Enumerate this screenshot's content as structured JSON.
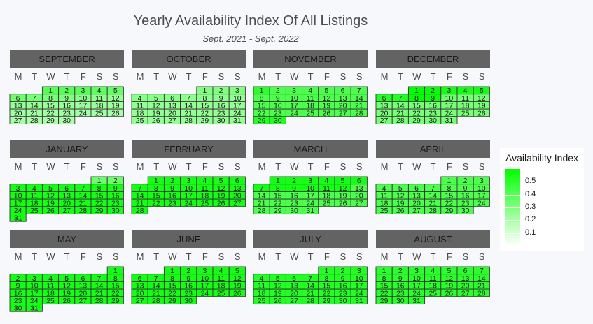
{
  "title": "Yearly Availability Index Of All Listings",
  "subtitle": "Sept. 2021 - Sept. 2022",
  "chart_data": {
    "type": "heatmap",
    "weekday_labels": [
      "M",
      "T",
      "W",
      "T",
      "F",
      "S",
      "S"
    ],
    "color_low": "#ffffff",
    "color_high": "#00ff00",
    "value_range": [
      0,
      0.6
    ],
    "months": [
      {
        "name": "SEPTEMBER",
        "year": 2021,
        "month": 9,
        "values": [
          0.4,
          0.4,
          0.4,
          0.38,
          0.36,
          0.34,
          0.32,
          0.32,
          0.3,
          0.28,
          0.27,
          0.26,
          0.25,
          0.25,
          0.24,
          0.24,
          0.23,
          0.23,
          0.23,
          0.22,
          0.22,
          0.22,
          0.22,
          0.21,
          0.21,
          0.21,
          0.21,
          0.2,
          0.2,
          0.2
        ]
      },
      {
        "name": "OCTOBER",
        "year": 2021,
        "month": 10,
        "values": [
          0.3,
          0.3,
          0.3,
          0.28,
          0.28,
          0.28,
          0.27,
          0.27,
          0.27,
          0.26,
          0.26,
          0.26,
          0.25,
          0.25,
          0.25,
          0.25,
          0.25,
          0.25,
          0.25,
          0.25,
          0.25,
          0.25,
          0.25,
          0.25,
          0.25,
          0.25,
          0.25,
          0.25,
          0.25,
          0.25,
          0.25
        ]
      },
      {
        "name": "NOVEMBER",
        "year": 2021,
        "month": 11,
        "values": [
          0.5,
          0.42,
          0.42,
          0.42,
          0.42,
          0.42,
          0.42,
          0.42,
          0.42,
          0.42,
          0.42,
          0.42,
          0.42,
          0.42,
          0.42,
          0.42,
          0.42,
          0.42,
          0.42,
          0.42,
          0.42,
          0.42,
          0.42,
          0.42,
          0.42,
          0.42,
          0.42,
          0.42,
          0.52,
          0.52
        ]
      },
      {
        "name": "DECEMBER",
        "year": 2021,
        "month": 12,
        "values": [
          0.6,
          0.58,
          0.55,
          0.55,
          0.55,
          0.52,
          0.52,
          0.6,
          0.58,
          0.35,
          0.33,
          0.33,
          0.32,
          0.32,
          0.32,
          0.32,
          0.32,
          0.32,
          0.32,
          0.32,
          0.32,
          0.32,
          0.32,
          0.32,
          0.32,
          0.32,
          0.32,
          0.32,
          0.32,
          0.32,
          0.32
        ]
      },
      {
        "name": "JANUARY",
        "year": 2022,
        "month": 1,
        "values": [
          0.35,
          0.35,
          0.55,
          0.55,
          0.55,
          0.55,
          0.55,
          0.55,
          0.55,
          0.55,
          0.55,
          0.55,
          0.55,
          0.55,
          0.55,
          0.55,
          0.55,
          0.55,
          0.55,
          0.55,
          0.55,
          0.55,
          0.55,
          0.55,
          0.55,
          0.55,
          0.55,
          0.55,
          0.55,
          0.55,
          0.55
        ]
      },
      {
        "name": "FEBRUARY",
        "year": 2022,
        "month": 2,
        "values": [
          0.55,
          0.55,
          0.55,
          0.55,
          0.55,
          0.55,
          0.55,
          0.55,
          0.55,
          0.55,
          0.55,
          0.55,
          0.55,
          0.55,
          0.55,
          0.55,
          0.55,
          0.55,
          0.55,
          0.55,
          0.55,
          0.55,
          0.55,
          0.55,
          0.55,
          0.55,
          0.55,
          0.55
        ]
      },
      {
        "name": "MARCH",
        "year": 2022,
        "month": 3,
        "values": [
          0.55,
          0.55,
          0.55,
          0.55,
          0.55,
          0.55,
          0.55,
          0.55,
          0.55,
          0.55,
          0.55,
          0.55,
          0.42,
          0.42,
          0.42,
          0.42,
          0.42,
          0.42,
          0.42,
          0.42,
          0.42,
          0.42,
          0.42,
          0.42,
          0.42,
          0.42,
          0.42,
          0.42,
          0.42,
          0.42,
          0.42
        ]
      },
      {
        "name": "APRIL",
        "year": 2022,
        "month": 4,
        "values": [
          0.42,
          0.42,
          0.42,
          0.42,
          0.42,
          0.42,
          0.42,
          0.42,
          0.42,
          0.42,
          0.42,
          0.42,
          0.42,
          0.42,
          0.42,
          0.42,
          0.42,
          0.42,
          0.42,
          0.42,
          0.42,
          0.42,
          0.42,
          0.42,
          0.42,
          0.42,
          0.42,
          0.42,
          0.42,
          0.42
        ]
      },
      {
        "name": "MAY",
        "year": 2022,
        "month": 5,
        "values": [
          0.55,
          0.55,
          0.55,
          0.55,
          0.55,
          0.55,
          0.55,
          0.55,
          0.55,
          0.55,
          0.55,
          0.55,
          0.55,
          0.55,
          0.55,
          0.55,
          0.55,
          0.55,
          0.55,
          0.55,
          0.55,
          0.55,
          0.55,
          0.55,
          0.55,
          0.55,
          0.55,
          0.55,
          0.55,
          0.55,
          0.55
        ]
      },
      {
        "name": "JUNE",
        "year": 2022,
        "month": 6,
        "values": [
          0.55,
          0.55,
          0.55,
          0.55,
          0.55,
          0.55,
          0.55,
          0.55,
          0.55,
          0.55,
          0.55,
          0.55,
          0.55,
          0.55,
          0.55,
          0.55,
          0.55,
          0.55,
          0.55,
          0.55,
          0.55,
          0.55,
          0.55,
          0.55,
          0.55,
          0.55,
          0.55,
          0.55,
          0.55,
          0.55
        ]
      },
      {
        "name": "JULY",
        "year": 2022,
        "month": 7,
        "values": [
          0.52,
          0.52,
          0.52,
          0.52,
          0.52,
          0.52,
          0.52,
          0.52,
          0.52,
          0.52,
          0.52,
          0.52,
          0.52,
          0.52,
          0.52,
          0.52,
          0.52,
          0.52,
          0.52,
          0.52,
          0.52,
          0.52,
          0.52,
          0.52,
          0.52,
          0.52,
          0.52,
          0.52,
          0.52,
          0.52,
          0.52
        ]
      },
      {
        "name": "AUGUST",
        "year": 2022,
        "month": 8,
        "values": [
          0.5,
          0.5,
          0.5,
          0.5,
          0.5,
          0.5,
          0.5,
          0.5,
          0.5,
          0.5,
          0.5,
          0.5,
          0.5,
          0.5,
          0.5,
          0.5,
          0.5,
          0.5,
          0.5,
          0.5,
          0.5,
          0.5,
          0.5,
          0.5,
          0.5,
          0.5,
          0.5,
          0.5,
          0.5,
          0.5,
          0.5
        ]
      }
    ],
    "legend": {
      "title": "Availability Index",
      "position": "right",
      "ticks": [
        0.5,
        0.4,
        0.3,
        0.2,
        0.1
      ]
    }
  }
}
